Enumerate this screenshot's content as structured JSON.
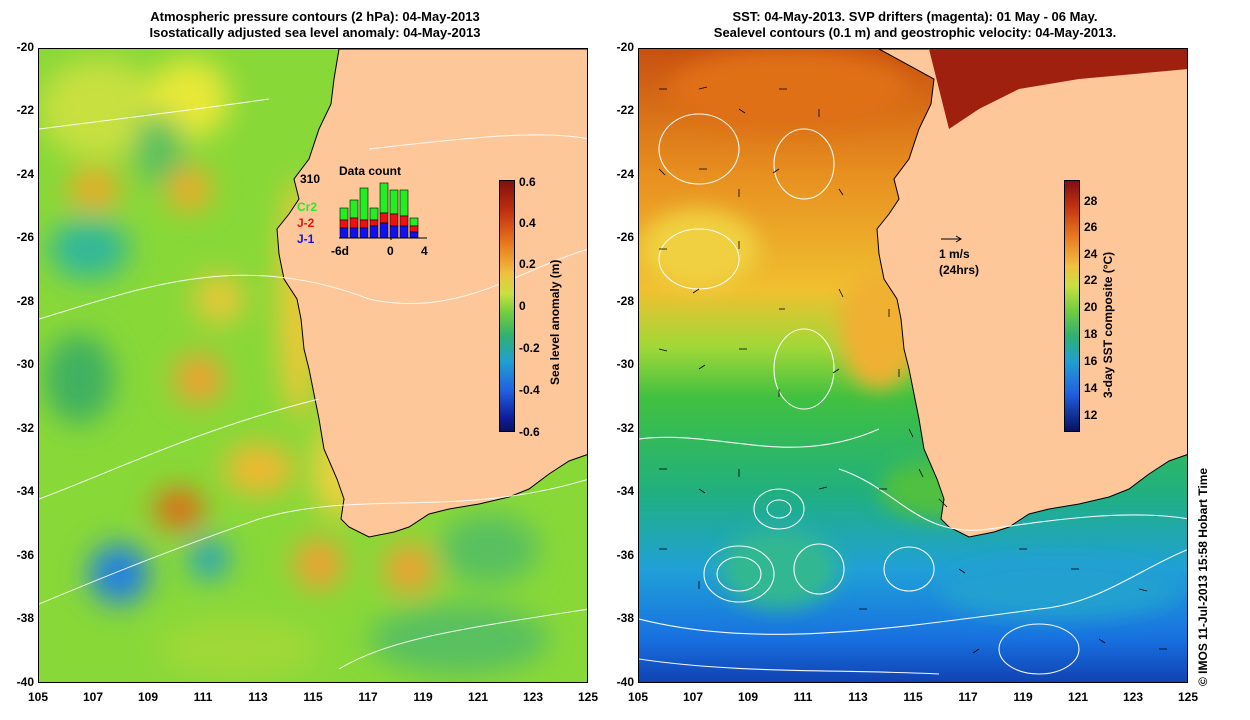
{
  "left_panel": {
    "title_line1": "Atmospheric pressure contours (2 hPa): 04-May-2013",
    "title_line2": "Isostatically adjusted sea level anomaly: 04-May-2013",
    "colorbar": {
      "title": "Sea level anomaly (m)",
      "ticks": [
        "0.6",
        "0.4",
        "0.2",
        "0",
        "-0.2",
        "-0.4",
        "-0.6"
      ],
      "range": [
        -0.6,
        0.6
      ]
    },
    "data_count": {
      "title": "Data count",
      "total": "310",
      "series": [
        {
          "name": "Cr2",
          "color": "#22ee22"
        },
        {
          "name": "J-2",
          "color": "#ee1111"
        },
        {
          "name": "J-1",
          "color": "#1111ee"
        }
      ],
      "x_ticks": [
        "-6d",
        "0",
        "4"
      ]
    }
  },
  "right_panel": {
    "title_line1": "SST: 04-May-2013. SVP drifters (magenta): 01 May - 06 May.",
    "title_line2": "Sealevel contours (0.1 m) and geostrophic velocity: 04-May-2013.",
    "velocity_key_speed": "1 m/s",
    "velocity_key_duration": "(24hrs)",
    "colorbar": {
      "title": "3-day SST composite (°C)",
      "ticks": [
        "28",
        "26",
        "24",
        "22",
        "20",
        "18",
        "16",
        "14",
        "12"
      ],
      "range": [
        11,
        29.5
      ]
    }
  },
  "axes": {
    "lat_ticks": [
      "-20",
      "-22",
      "-24",
      "-26",
      "-28",
      "-30",
      "-32",
      "-34",
      "-36",
      "-38",
      "-40"
    ],
    "lon_ticks": [
      "105",
      "107",
      "109",
      "111",
      "113",
      "115",
      "117",
      "119",
      "121",
      "123",
      "125"
    ]
  },
  "copyright": "© IMOS 11-Jul-2013 15:58 Hobart Time"
}
